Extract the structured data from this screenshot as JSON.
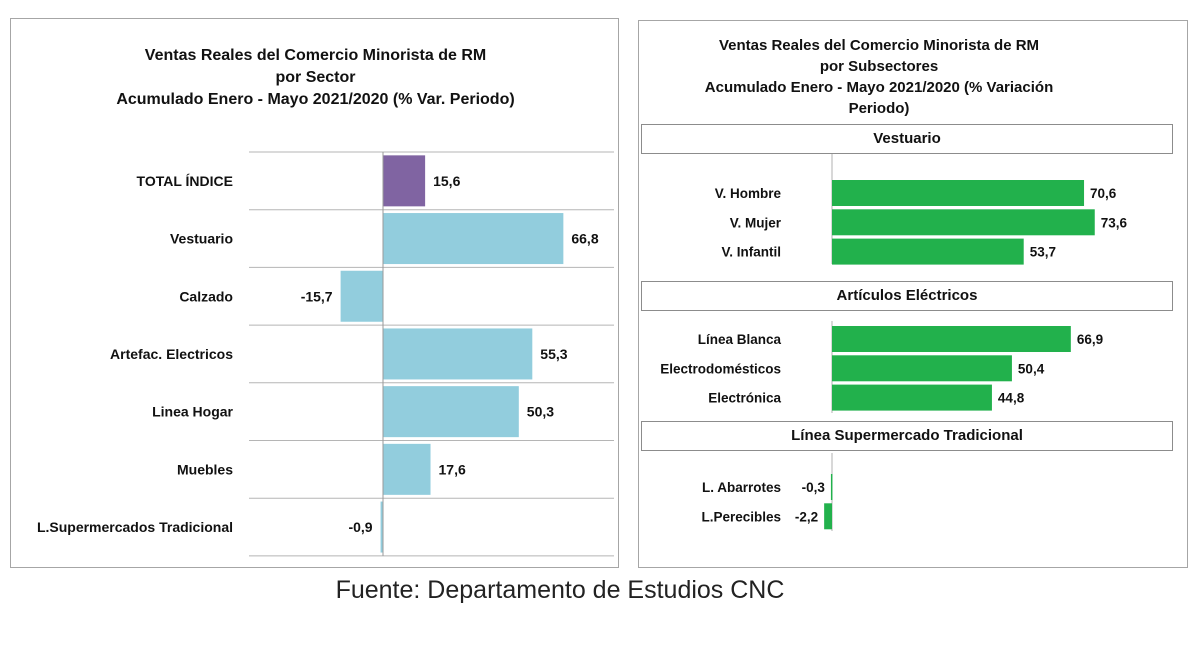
{
  "chart_data": [
    {
      "type": "bar",
      "orientation": "horizontal",
      "title": [
        "Ventas Reales del Comercio Minorista de RM",
        "por Sector",
        "Acumulado Enero - Mayo 2021/2020 (% Var. Periodo)"
      ],
      "categories": [
        "TOTAL ÍNDICE",
        "Vestuario",
        "Calzado",
        "Artefac. Electricos",
        "Linea Hogar",
        "Muebles",
        "L.Supermercados Tradicional"
      ],
      "values": [
        15.6,
        66.8,
        -15.7,
        55.3,
        50.3,
        17.6,
        -0.9
      ],
      "data_labels": [
        "15,6",
        "66,8",
        "-15,7",
        "55,3",
        "50,3",
        "17,6",
        "-0,9"
      ],
      "colors": [
        "#8064a2",
        "#92cddd",
        "#92cddd",
        "#92cddd",
        "#92cddd",
        "#92cddd",
        "#92cddd"
      ],
      "grid": true
    },
    {
      "type": "bar",
      "orientation": "horizontal",
      "title": [
        "Ventas Reales del Comercio Minorista de RM",
        "por Subsectores",
        "Acumulado Enero - Mayo 2021/2020 (% Variación",
        "Periodo)"
      ],
      "groups": [
        {
          "name": "Vestuario",
          "categories": [
            "V. Hombre",
            "V. Mujer",
            "V. Infantil"
          ],
          "values": [
            70.6,
            73.6,
            53.7
          ],
          "data_labels": [
            "70,6",
            "73,6",
            "53,7"
          ]
        },
        {
          "name": "Artículos Eléctricos",
          "categories": [
            "Línea Blanca",
            "Electrodomésticos",
            "Electrónica"
          ],
          "values": [
            66.9,
            50.4,
            44.8
          ],
          "data_labels": [
            "66,9",
            "50,4",
            "44,8"
          ]
        },
        {
          "name": "Línea  Supermercado Tradicional",
          "categories": [
            "L. Abarrotes",
            "L.Perecibles"
          ],
          "values": [
            -0.3,
            -2.2
          ],
          "data_labels": [
            "-0,3",
            "-2,2"
          ]
        }
      ],
      "color": "#22b14c",
      "grid": false
    }
  ],
  "source": "Fuente: Departamento de Estudios CNC"
}
